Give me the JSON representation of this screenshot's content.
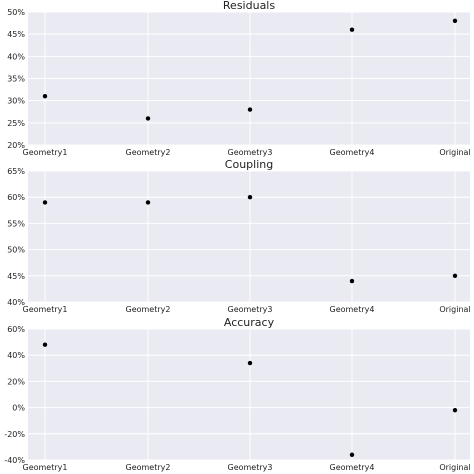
{
  "colors": {
    "panel_background": "#eaeaf2",
    "grid": "#ffffff",
    "point": "#000000",
    "text": "#222222"
  },
  "chart_data": [
    {
      "type": "scatter",
      "title": "Residuals",
      "categories": [
        "Geometry1",
        "Geometry2",
        "Geometry3",
        "Geometry4",
        "Original"
      ],
      "values": [
        31,
        26,
        28,
        46,
        48
      ],
      "ylim": [
        20,
        50
      ],
      "yticks": [
        "20%",
        "25%",
        "30%",
        "35%",
        "40%",
        "45%",
        "50%"
      ],
      "grid": true,
      "xlabel": "",
      "ylabel": ""
    },
    {
      "type": "scatter",
      "title": "Coupling",
      "categories": [
        "Geometry1",
        "Geometry2",
        "Geometry3",
        "Geometry4",
        "Original"
      ],
      "values": [
        59,
        59,
        60,
        44,
        45
      ],
      "ylim": [
        40,
        65
      ],
      "yticks": [
        "40%",
        "45%",
        "50%",
        "55%",
        "60%",
        "65%"
      ],
      "grid": true,
      "xlabel": "",
      "ylabel": ""
    },
    {
      "type": "scatter",
      "title": "Accuracy",
      "categories": [
        "Geometry1",
        "Geometry2",
        "Geometry3",
        "Geometry4",
        "Original"
      ],
      "values": [
        48,
        null,
        34,
        -36,
        -2
      ],
      "ylim": [
        -40,
        60
      ],
      "yticks": [
        "-40%",
        "-20%",
        "0%",
        "20%",
        "40%",
        "60%"
      ],
      "grid": true,
      "xlabel": "",
      "ylabel": ""
    }
  ]
}
